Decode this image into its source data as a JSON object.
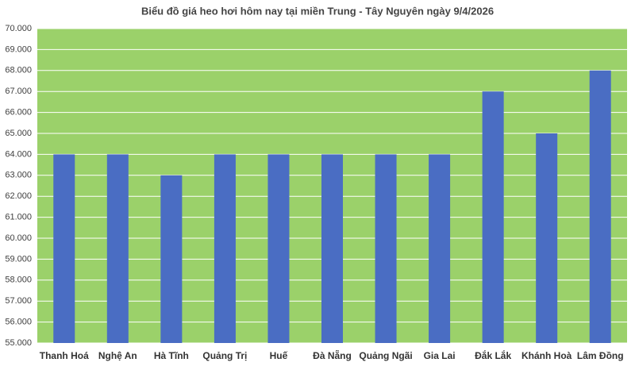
{
  "chart_data": {
    "type": "bar",
    "title": "Biểu đồ giá heo hơi hôm nay tại miền Trung - Tây Nguyên ngày 9/4/2026",
    "categories": [
      "Thanh Hoá",
      "Nghệ An",
      "Hà Tĩnh",
      "Quảng Trị",
      "Huế",
      "Đà Nẵng",
      "Quảng Ngãi",
      "Gia Lai",
      "Đắk Lắk",
      "Khánh Hoà",
      "Lâm Đồng"
    ],
    "values": [
      64000,
      64000,
      63000,
      64000,
      64000,
      64000,
      64000,
      64000,
      67000,
      65000,
      68000
    ],
    "color": "#4a6dc3",
    "plot_background": "#9bd16a",
    "ylim": [
      55000,
      70000
    ],
    "yticks": [
      {
        "value": 55000,
        "label": "55.000"
      },
      {
        "value": 56000,
        "label": "56.000"
      },
      {
        "value": 57000,
        "label": "57.000"
      },
      {
        "value": 58000,
        "label": "58.000"
      },
      {
        "value": 59000,
        "label": "59.000"
      },
      {
        "value": 60000,
        "label": "60.000"
      },
      {
        "value": 61000,
        "label": "61.000"
      },
      {
        "value": 62000,
        "label": "62.000"
      },
      {
        "value": 63000,
        "label": "63.000"
      },
      {
        "value": 64000,
        "label": "64.000"
      },
      {
        "value": 65000,
        "label": "65.000"
      },
      {
        "value": 66000,
        "label": "66.000"
      },
      {
        "value": 67000,
        "label": "67.000"
      },
      {
        "value": 68000,
        "label": "68.000"
      },
      {
        "value": 69000,
        "label": "69.000"
      },
      {
        "value": 70000,
        "label": "70.000"
      }
    ],
    "grid": true
  }
}
